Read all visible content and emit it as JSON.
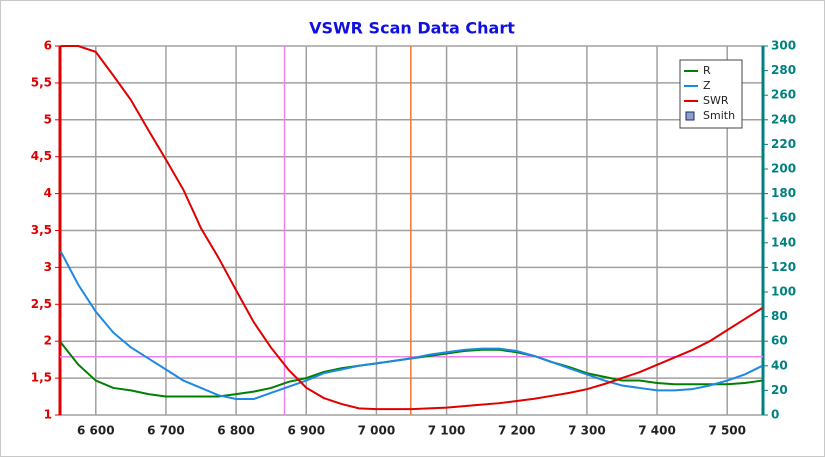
{
  "chart_data": {
    "type": "line",
    "title": "VSWR Scan Data Chart",
    "x": [
      6550,
      6575,
      6600,
      6625,
      6650,
      6675,
      6700,
      6725,
      6750,
      6775,
      6800,
      6825,
      6850,
      6875,
      6900,
      6925,
      6950,
      6975,
      7000,
      7025,
      7050,
      7075,
      7100,
      7125,
      7150,
      7175,
      7200,
      7225,
      7250,
      7275,
      7300,
      7325,
      7350,
      7375,
      7400,
      7425,
      7450,
      7475,
      7500,
      7525,
      7550
    ],
    "series": [
      {
        "name": "R",
        "color": "#008000",
        "axis": "y2",
        "values": [
          59,
          41,
          28,
          22,
          20,
          17,
          15,
          15,
          15,
          15,
          17,
          19,
          22,
          27,
          30,
          35,
          38,
          40,
          42,
          44,
          46,
          48,
          50,
          52,
          53,
          53,
          51,
          48,
          43,
          39,
          34,
          31,
          28,
          28,
          26,
          25,
          25,
          25,
          25,
          26,
          28
        ]
      },
      {
        "name": "Z",
        "color": "#1e88e5",
        "axis": "y2",
        "values": [
          133,
          106,
          84,
          67,
          55,
          46,
          37,
          28,
          22,
          16,
          13,
          13,
          18,
          23,
          28,
          34,
          37,
          40,
          42,
          44,
          46,
          49,
          51,
          53,
          54,
          54,
          52,
          48,
          43,
          38,
          33,
          28,
          24,
          22,
          20,
          20,
          21,
          24,
          28,
          33,
          40
        ]
      },
      {
        "name": "SWR",
        "color": "#e00000",
        "axis": "y",
        "values": [
          6,
          6,
          5.92,
          5.6,
          5.27,
          4.86,
          4.46,
          4.05,
          3.53,
          3.13,
          2.69,
          2.26,
          1.91,
          1.61,
          1.37,
          1.23,
          1.15,
          1.09,
          1.08,
          1.08,
          1.08,
          1.09,
          1.1,
          1.12,
          1.14,
          1.16,
          1.19,
          1.22,
          1.26,
          1.3,
          1.35,
          1.42,
          1.5,
          1.58,
          1.68,
          1.78,
          1.88,
          2.0,
          2.15,
          2.3,
          2.45
        ]
      }
    ],
    "legend_extra": [
      {
        "name": "Smith",
        "color": "#1a2a6c"
      }
    ],
    "xlim": [
      6549,
      7551
    ],
    "xticks": [
      {
        "value": 6600,
        "label": "6 600"
      },
      {
        "value": 6700,
        "label": "6 700"
      },
      {
        "value": 6800,
        "label": "6 800"
      },
      {
        "value": 6900,
        "label": "6 900"
      },
      {
        "value": 7000,
        "label": "7 000"
      },
      {
        "value": 7100,
        "label": "7 100"
      },
      {
        "value": 7200,
        "label": "7 200"
      },
      {
        "value": 7300,
        "label": "7 300"
      },
      {
        "value": 7400,
        "label": "7 400"
      },
      {
        "value": 7500,
        "label": "7 500"
      }
    ],
    "ylim": [
      1,
      6
    ],
    "yticks": [
      1,
      {
        "value": 1.5,
        "label": "1,5"
      },
      2,
      {
        "value": 2.5,
        "label": "2,5"
      },
      3,
      {
        "value": 3.5,
        "label": "3,5"
      },
      4,
      {
        "value": 4.5,
        "label": "4,5"
      },
      5,
      {
        "value": 5.5,
        "label": "5,5"
      },
      6
    ],
    "y2lim": [
      0,
      300
    ],
    "y2ticks": [
      0,
      20,
      40,
      60,
      80,
      100,
      120,
      140,
      160,
      180,
      200,
      220,
      240,
      260,
      280,
      300
    ],
    "grid": true,
    "legend": "upper right",
    "vlines": [
      {
        "value": 6869,
        "color": "#ee82ee"
      },
      {
        "value": 7049,
        "color": "#f07830"
      }
    ],
    "hlines": [
      {
        "value": 1.79,
        "color": "#ee82ee"
      }
    ]
  }
}
